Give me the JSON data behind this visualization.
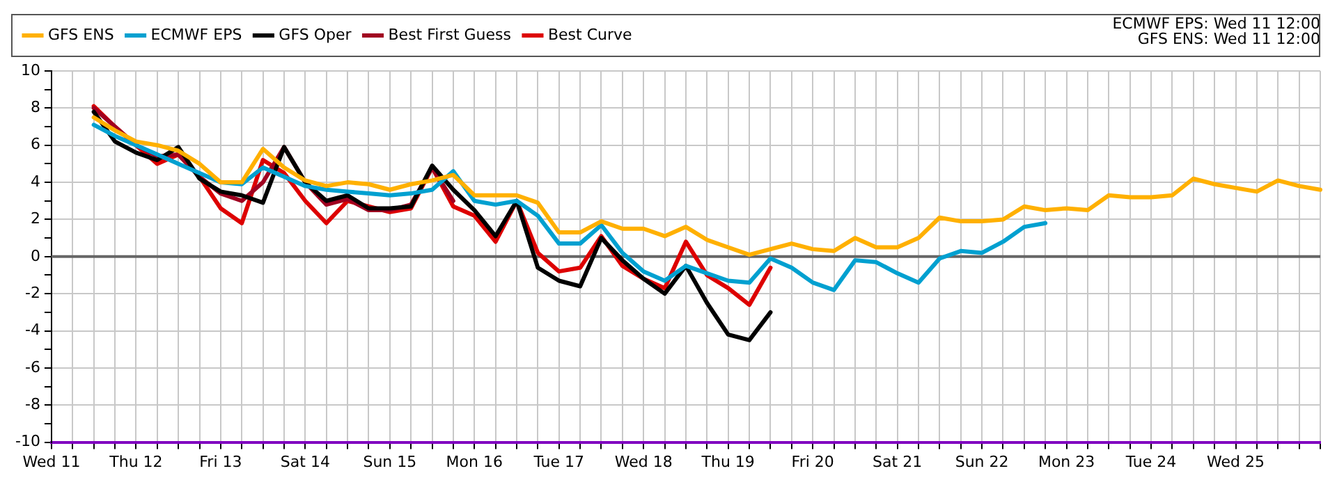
{
  "chart_data": {
    "type": "line",
    "annotations": [
      "ECMWF EPS: Wed 11 12:00",
      "GFS ENS: Wed 11 12:00"
    ],
    "legend": "top left",
    "grid": true,
    "marker": "none",
    "line_style": "solid",
    "ylim": [
      -10,
      10
    ],
    "yticks": [
      -10,
      {
        "value": -9,
        "label": null
      },
      -8,
      {
        "value": -7,
        "label": null
      },
      -6,
      {
        "value": -5,
        "label": null
      },
      -4,
      {
        "value": -3,
        "label": null
      },
      -2,
      {
        "value": -1,
        "label": null
      },
      0,
      {
        "value": 1,
        "label": null
      },
      2,
      {
        "value": 3,
        "label": null
      },
      4,
      {
        "value": 5,
        "label": null
      },
      6,
      {
        "value": 7,
        "label": null
      },
      8,
      {
        "value": 9,
        "label": null
      },
      10
    ],
    "categories": [
      "Wed 11",
      null,
      null,
      null,
      "Thu 12",
      null,
      null,
      null,
      "Fri 13",
      null,
      null,
      null,
      "Sat 14",
      null,
      null,
      null,
      "Sun 15",
      null,
      null,
      null,
      "Mon 16",
      null,
      null,
      null,
      "Tue 17",
      null,
      null,
      null,
      "Wed 18",
      null,
      null,
      null,
      "Thu 19",
      null,
      null,
      null,
      "Fri 20",
      null,
      null,
      null,
      "Sat 21",
      null,
      null,
      null,
      "Sun 22",
      null,
      null,
      null,
      "Mon 23",
      null,
      null,
      null,
      "Tue 24",
      null,
      null,
      null,
      "Wed 25",
      null,
      null,
      null,
      null
    ],
    "ref_lines": [
      {
        "axis": "y",
        "value": 0,
        "color": "#666666"
      }
    ],
    "series": [
      {
        "name": "GFS ENS",
        "color": "#ffb000",
        "values": [
          null,
          null,
          7.5,
          6.8,
          6.2,
          6.0,
          5.7,
          5.0,
          4.0,
          4.0,
          5.8,
          4.8,
          4.1,
          3.8,
          4.0,
          3.9,
          3.6,
          3.9,
          4.1,
          4.4,
          3.3,
          3.3,
          3.3,
          2.9,
          1.3,
          1.3,
          1.9,
          1.5,
          1.5,
          1.1,
          1.6,
          0.9,
          0.5,
          0.1,
          0.4,
          0.7,
          0.4,
          0.3,
          1.0,
          0.5,
          0.5,
          1.0,
          2.1,
          1.9,
          1.9,
          2.0,
          2.7,
          2.5,
          2.6,
          2.5,
          3.3,
          3.2,
          3.2,
          3.3,
          4.2,
          3.9,
          3.7,
          3.5,
          4.1,
          3.8,
          3.6
        ]
      },
      {
        "name": "ECMWF EPS",
        "color": "#00a0d0",
        "values": [
          null,
          null,
          7.1,
          6.5,
          6.0,
          5.5,
          5.0,
          4.5,
          4.0,
          3.9,
          4.8,
          4.3,
          3.8,
          3.6,
          3.5,
          3.4,
          3.3,
          3.4,
          3.6,
          4.6,
          3.0,
          2.8,
          3.0,
          2.2,
          0.7,
          0.7,
          1.7,
          0.2,
          -0.8,
          -1.3,
          -0.5,
          -0.9,
          -1.3,
          -1.4,
          -0.1,
          -0.6,
          -1.4,
          -1.8,
          -0.2,
          -0.3,
          -0.9,
          -1.4,
          -0.1,
          0.3,
          0.2,
          0.8,
          1.6,
          1.8,
          null,
          null,
          null,
          null,
          null,
          null,
          null,
          null,
          null,
          null,
          null,
          null,
          null
        ]
      },
      {
        "name": "GFS Oper",
        "color": "#000000",
        "values": [
          null,
          null,
          7.8,
          6.2,
          5.6,
          5.2,
          5.9,
          4.2,
          3.5,
          3.3,
          2.9,
          5.9,
          4.0,
          3.0,
          3.3,
          2.6,
          2.6,
          2.7,
          4.9,
          3.6,
          2.5,
          1.1,
          3.0,
          -0.6,
          -1.3,
          -1.6,
          1.0,
          -0.2,
          -1.2,
          -2.0,
          -0.5,
          -2.5,
          -4.2,
          -4.5,
          -3.0,
          null,
          null,
          null,
          null,
          null,
          null,
          null,
          null,
          null,
          null,
          null,
          null,
          null,
          null,
          null,
          null,
          null,
          null,
          null,
          null,
          null,
          null,
          null,
          null,
          null,
          null
        ]
      },
      {
        "name": "Best First Guess",
        "color": "#a00020",
        "values": [
          null,
          null,
          8.0,
          7.0,
          6.0,
          5.4,
          5.5,
          4.3,
          3.4,
          3.0,
          4.0,
          5.9,
          4.0,
          2.8,
          3.1,
          2.5,
          2.5,
          2.8,
          4.8,
          3.0,
          null,
          null,
          null,
          null,
          null,
          null,
          null,
          null,
          null,
          null,
          null,
          null,
          null,
          null,
          null,
          null,
          null,
          null,
          null,
          null,
          null,
          null,
          null,
          null,
          null,
          null,
          null,
          null,
          null,
          null,
          null,
          null,
          null,
          null,
          null,
          null,
          null,
          null,
          null,
          null,
          null
        ]
      },
      {
        "name": "Best Curve",
        "color": "#dd0000",
        "values": [
          null,
          null,
          8.1,
          7.0,
          6.0,
          5.0,
          5.5,
          4.3,
          2.6,
          1.8,
          5.2,
          4.5,
          3.0,
          1.8,
          3.0,
          2.7,
          2.4,
          2.6,
          4.8,
          2.7,
          2.2,
          0.8,
          3.0,
          0.2,
          -0.8,
          -0.6,
          1.1,
          -0.5,
          -1.2,
          -1.7,
          0.8,
          -1.0,
          -1.7,
          -2.6,
          -0.6,
          null,
          null,
          null,
          null,
          null,
          null,
          null,
          null,
          null,
          null,
          null,
          null,
          null,
          null,
          null,
          null,
          null,
          null,
          null,
          null,
          null,
          null,
          null,
          null,
          null,
          null
        ]
      }
    ]
  }
}
